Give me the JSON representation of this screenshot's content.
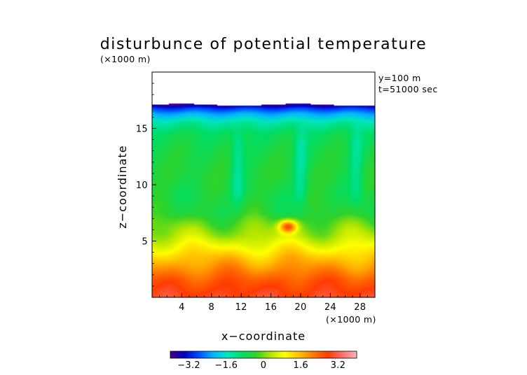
{
  "chart_data": {
    "type": "heatmap",
    "title": "disturbunce of potential temperature",
    "xlabel": "x−coordinate",
    "ylabel": "z−coordinate",
    "x_unit_label": "(×1000 m)",
    "z_unit_label": "(×1000 m)",
    "annotations": [
      "y=100 m",
      "t=51000 sec"
    ],
    "xlim": [
      0,
      30
    ],
    "ylim": [
      0,
      20
    ],
    "x_ticks": [
      4,
      8,
      12,
      16,
      20,
      24,
      28
    ],
    "y_ticks": [
      5,
      10,
      15
    ],
    "x_tick_labels": [
      "4",
      "8",
      "12",
      "16",
      "20",
      "24",
      "28"
    ],
    "y_tick_labels": [
      "5",
      "10",
      "15"
    ],
    "colorbar": {
      "range": [
        -4,
        4
      ],
      "ticks": [
        -3.2,
        -1.6,
        0,
        1.6,
        3.2
      ],
      "tick_labels": [
        "−3.2",
        "−1.6",
        "0",
        "1.6",
        "3.2"
      ],
      "colors": [
        "#4b0082",
        "#0000c8",
        "#0050ff",
        "#00b4ff",
        "#00e6be",
        "#00dc64",
        "#32d228",
        "#b4e600",
        "#ffff00",
        "#ffbe00",
        "#ff7800",
        "#ff3c00",
        "#ff6e6e",
        "#ffb4b4"
      ]
    },
    "field_profile": {
      "description_z_km": [
        0.2,
        1.5,
        2.5,
        3.5,
        4.5,
        5.5,
        6.5,
        7.5,
        9,
        11,
        13,
        14.5,
        15.5,
        16.3,
        16.8,
        17.1
      ],
      "theta_prime": [
        2.9,
        2.5,
        2.0,
        1.5,
        0.9,
        0.3,
        -0.1,
        -0.5,
        -0.6,
        -0.5,
        -0.6,
        -0.8,
        -1.3,
        -2.2,
        -3.0,
        -3.8
      ]
    },
    "features": [
      {
        "name": "warm-blob",
        "x": 18.3,
        "z": 6.3,
        "value": 2.6
      },
      {
        "name": "cold-column-left",
        "x": 11.5,
        "z_range": [
          8,
          15
        ],
        "value": -1.2
      },
      {
        "name": "cold-column-right",
        "x": 20,
        "z_range": [
          8,
          15
        ],
        "value": -1.2
      },
      {
        "name": "cold-column-edge",
        "x": 27.5,
        "z_range": [
          8,
          15
        ],
        "value": -1.1
      }
    ],
    "grid": false,
    "domain_top_z": 17.1
  }
}
